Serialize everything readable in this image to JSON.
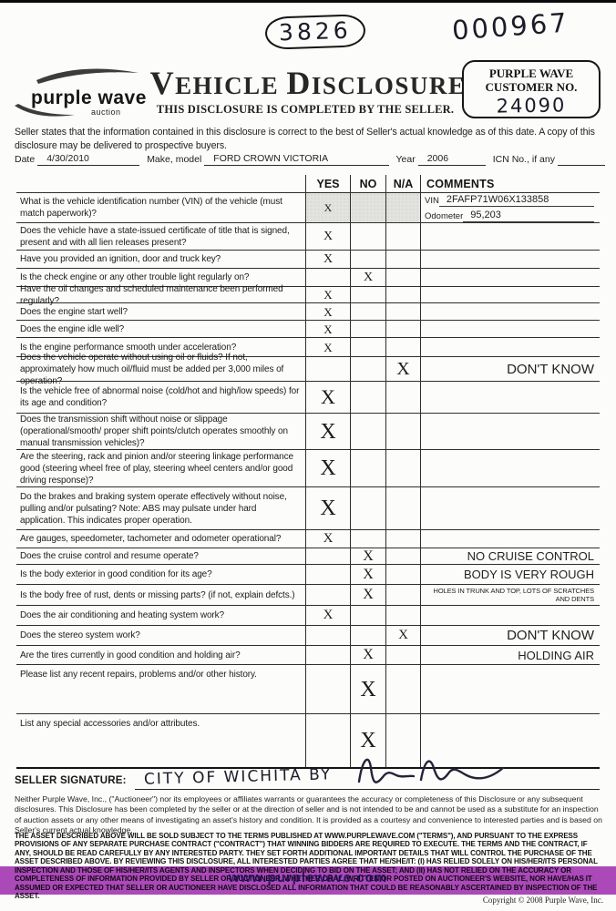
{
  "colors": {
    "highlight_purple": "#a63ab8",
    "paper": "#fcfcfa",
    "ink": "#222222"
  },
  "handwritten": {
    "lot_number": "3826",
    "serial_number": "000967"
  },
  "header": {
    "logo_text": "purple wave",
    "logo_sub": "auction",
    "title_word1": "VEHICLE",
    "title_word2": "DISCLOSURE",
    "subtitle": "THIS DISCLOSURE IS COMPLETED BY THE SELLER.",
    "customer_box": {
      "label_line1": "PURPLE WAVE",
      "label_line2": "CUSTOMER NO.",
      "value": "24090"
    }
  },
  "intro": {
    "statement": "Seller states that the information contained in this disclosure is correct to the best of Seller's actual knowledge as of this date. A copy of this disclosure may be delivered to prospective buyers."
  },
  "meta": {
    "date_label": "Date",
    "date_value": "4/30/2010",
    "make_label": "Make, model",
    "make_value": "FORD CROWN VICTORIA",
    "year_label": "Year",
    "year_value": "2006",
    "icn_label": "ICN No., if any",
    "icn_value": ""
  },
  "table": {
    "headers": {
      "yes": "YES",
      "no": "NO",
      "na": "N/A",
      "comments": "COMMENTS"
    },
    "rows": [
      {
        "question": "What is the vehicle identification number (VIN) of the vehicle (must match paperwork)?",
        "yes": "X",
        "no": "",
        "na": "",
        "comment": "",
        "vin_label": "VIN",
        "vin_value": "2FAFP71W06X133858",
        "odometer_label": "Odometer",
        "odometer_value": "95,203"
      },
      {
        "question": "Does the vehicle have a state-issued certificate of title that is signed, present and with all lien releases present?",
        "yes": "X",
        "no": "",
        "na": "",
        "comment": ""
      },
      {
        "question": "Have you provided an ignition, door and truck key?",
        "yes": "X",
        "no": "",
        "na": "",
        "comment": ""
      },
      {
        "question": "Is the check engine or any other trouble light regularly on?",
        "yes": "",
        "no": "X",
        "na": "",
        "comment": ""
      },
      {
        "question": "Have the oil changes and scheduled maintenance been performed regularly?",
        "yes": "X",
        "no": "",
        "na": "",
        "comment": ""
      },
      {
        "question": "Does the engine start well?",
        "yes": "X",
        "no": "",
        "na": "",
        "comment": ""
      },
      {
        "question": "Does the engine idle well?",
        "yes": "X",
        "no": "",
        "na": "",
        "comment": ""
      },
      {
        "question": "Is the engine performance smooth under acceleration?",
        "yes": "X",
        "no": "",
        "na": "",
        "comment": ""
      },
      {
        "question": "Does the vehicle operate without using oil or fluids?  If not, approximately how much oil/fluid must be added per 3,000 miles of operation?",
        "yes": "",
        "no": "",
        "na": "X",
        "comment": "DON'T KNOW"
      },
      {
        "question": "Is the vehicle free of abnormal noise (cold/hot and high/low speeds) for its age and condition?",
        "yes": "X",
        "no": "",
        "na": "",
        "comment": ""
      },
      {
        "question": "Does the transmission shift without noise or slippage (operational/smooth/ proper shift points/clutch operates smoothly on manual transmission vehicles)?",
        "yes": "X",
        "no": "",
        "na": "",
        "comment": ""
      },
      {
        "question": "Are the steering, rack and pinion and/or steering linkage performance good (steering wheel free of play, steering wheel centers and/or good driving response)?",
        "yes": "X",
        "no": "",
        "na": "",
        "comment": ""
      },
      {
        "question": "Do the brakes and braking system operate effectively without noise, pulling and/or pulsating? Note: ABS may pulsate under hard application.  This indicates proper operation.",
        "yes": "X",
        "no": "",
        "na": "",
        "comment": ""
      },
      {
        "question": "Are gauges, speedometer, tachometer and odometer operational?",
        "yes": "X",
        "no": "",
        "na": "",
        "comment": ""
      },
      {
        "question": "Does the cruise control and resume operate?",
        "yes": "",
        "no": "X",
        "na": "",
        "comment": "NO CRUISE CONTROL"
      },
      {
        "question": "Is the body exterior in good condition for its age?",
        "yes": "",
        "no": "X",
        "na": "",
        "comment": "BODY IS VERY ROUGH"
      },
      {
        "question": "Is the body free of rust, dents or missing parts? (if not, explain defcts.)",
        "yes": "",
        "no": "X",
        "na": "",
        "comment": "HOLES IN TRUNK AND TOP, LOTS OF SCRATCHES AND DENTS"
      },
      {
        "question": "Does the air conditioning and heating system work?",
        "yes": "X",
        "no": "",
        "na": "",
        "comment": ""
      },
      {
        "question": "Does the stereo system work?",
        "yes": "",
        "no": "",
        "na": "X",
        "comment": "DON'T KNOW"
      },
      {
        "question": "Are the tires currently in good condition and holding air?",
        "yes": "",
        "no": "X",
        "na": "",
        "comment": "HOLDING AIR"
      },
      {
        "question": "Please list any recent repairs, problems and/or other history.",
        "yes": "",
        "no": "X",
        "na": "",
        "comment": ""
      },
      {
        "question": "List any special accessories and/or attributes.",
        "yes": "",
        "no": "X",
        "na": "",
        "comment": ""
      }
    ]
  },
  "signature": {
    "label": "SELLER SIGNATURE:",
    "handwritten_text": "CITY OF WICHITA BY"
  },
  "legal": {
    "paragraph1": "Neither Purple Wave, Inc., (\"Auctioneer\") nor its employees or affiliates warrants or guarantees the accuracy or completeness of this Disclosure or any subsequent disclosures.  This Disclosure has been completed by the seller or at the direction of seller and is not intended to be and cannot be used as a substitute for an inspection of auction assets or any other means of investigating an asset's history and condition.  It is provided as a courtesy and convenience to interested parties and is based on Seller's current actual knowledge.",
    "paragraph2": "THE ASSET DESCRIBED ABOVE WILL BE SOLD SUBJECT TO THE TERMS  PUBLISHED AT WWW.PURPLEWAVE.COM (\"TERMS\"), AND PURSUANT TO THE EXPRESS PROVISIONS OF ANY SEPARATE PURCHASE CONTRACT (\"CONTRACT\") THAT WINNING BIDDERS ARE REQUIRED TO EXECUTE.  THE TERMS AND THE CONTRACT, IF ANY, SHOULD BE READ CAREFULLY BY ANY INTERESTED PARTY.  THEY SET FORTH ADDITIONAL IMPORTANT DETAILS THAT WILL CONTROL THE PURCHASE OF THE ASSET DESCRIBED ABOVE.  BY REVIEWING THIS DISCLOSURE,  ALL INTERESTED PARTIES AGREE THAT HE/SHE/IT:  (I) HAS RELIED SOLELY ON HIS/HER/ITS PERSONAL INSPECTION AND THOSE OF HIS/HER/ITS AGENTS AND INSPECTORS WHEN DECIDING TO BID ON THE ASSET; AND (II) HAS NOT RELIED ON THE ACCURACY OR COMPLETENESS OF INFORMATION PROVIDED BY SELLER OR AUCTIONEER, WHETHER ORAL, WRITTEN OR POSTED ON AUCTIONEER'S WEBSITE, NOR HAVE/HAS IT ASSUMED OR EXPECTED THAT SELLER OR AUCTIONEER HAVE DISCLOSED ALL INFORMATION THAT COULD BE REASONABLY ASCERTAINED BY INSPECTION OF THE ASSET."
  },
  "footer": {
    "watermark": "www.purplewave.com",
    "copyright": "Copyright © 2008 Purple Wave, Inc."
  }
}
